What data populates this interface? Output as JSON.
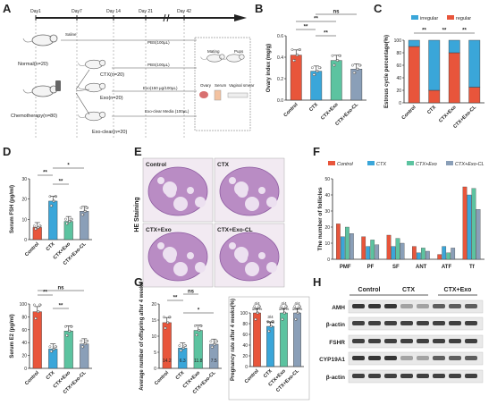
{
  "panel_labels": [
    "A",
    "B",
    "C",
    "D",
    "E",
    "F",
    "G",
    "H"
  ],
  "colors": {
    "control": "#e8553b",
    "ctx": "#3aa6d9",
    "ctx_exo": "#5cc3a0",
    "ctx_exo_cl": "#8a9fb8",
    "irregular": "#3aa6d9",
    "regular": "#e8553b"
  },
  "panel_a": {
    "timeline_labels": [
      "Day1",
      "Day7",
      "Day 14",
      "Day 21",
      "Day 42"
    ],
    "groups": [
      "Normal(n=20)",
      "Chemotherapy(n=80)"
    ],
    "branches": [
      "CTX(n=20)",
      "Exo(n=20)",
      "Exo-clear(n=20)"
    ],
    "treatments": [
      "Saline",
      "PBS(100µL)",
      "PBS(100µL)",
      "Exo(150 µg/100µL)",
      "Exo-clear Media (100µL)"
    ],
    "outcomes": [
      "Mating",
      "Pups",
      "Ovary",
      "Serum",
      "Vaginal smear"
    ]
  },
  "panel_b": {
    "ylabel": "Ovary index (mg/g)",
    "ticks": [
      "0.0",
      "0.2",
      "0.4",
      "0.6"
    ],
    "ns": "ns",
    "stars": [
      "**",
      "**",
      "**"
    ],
    "chart_data": {
      "type": "bar",
      "categories": [
        "Control",
        "CTX",
        "CTX+Exo",
        "CTX+Exo-CL"
      ],
      "values": [
        0.42,
        0.27,
        0.37,
        0.29
      ],
      "ylim": [
        0,
        0.6
      ]
    }
  },
  "panel_c": {
    "ylabel": "Estrous cycle percentage(%)",
    "ticks": [
      "0",
      "20",
      "40",
      "60",
      "80",
      "100"
    ],
    "legend": [
      "irregular",
      "regular"
    ],
    "stars": [
      "**",
      "**",
      "**"
    ],
    "chart_data": {
      "type": "bar",
      "categories": [
        "Control",
        "CTX",
        "CTX+Exo",
        "CTX+Exo-CL"
      ],
      "series": [
        {
          "name": "regular",
          "values": [
            90,
            20,
            80,
            25
          ]
        },
        {
          "name": "irregular",
          "values": [
            10,
            80,
            20,
            75
          ]
        }
      ],
      "ylim": [
        0,
        100
      ]
    }
  },
  "panel_d": {
    "ylabel": "Serum FSH (pg/ml)",
    "ticks": [
      "0",
      "10",
      "20",
      "30"
    ],
    "stars": [
      "**",
      "**",
      "*"
    ],
    "chart_data": {
      "type": "bar",
      "categories": [
        "Control",
        "CTX",
        "CTX+Exo",
        "CTX+Exo-CL"
      ],
      "values": [
        6,
        19,
        9,
        14
      ],
      "ylim": [
        0,
        30
      ]
    }
  },
  "panel_d2": {
    "ylabel": "Serum E2 (pg/ml)",
    "ticks": [
      "0",
      "20",
      "40",
      "60",
      "80",
      "100"
    ],
    "stars": [
      "**",
      "**"
    ],
    "ns": "ns",
    "chart_data": {
      "type": "bar",
      "categories": [
        "Control",
        "CTX",
        "CTX+Exo",
        "CTX+Exo-CL"
      ],
      "values": [
        88,
        30,
        58,
        38
      ],
      "ylim": [
        0,
        100
      ]
    }
  },
  "panel_e": {
    "side_label": "HE Staining",
    "tiles": [
      "Control",
      "CTX",
      "CTX+Exo",
      "CTX+Exo-CL"
    ]
  },
  "panel_f": {
    "legend": [
      "Control",
      "CTX",
      "CTX+Exo",
      "CTX+Exo-CL"
    ],
    "ylabel": "The number of follicles",
    "ticks": [
      "0",
      "10",
      "20",
      "30",
      "40",
      "50"
    ],
    "chart_data": {
      "type": "bar",
      "categories": [
        "PMF",
        "PF",
        "SF",
        "ANT",
        "ATF",
        "Tf"
      ],
      "series": [
        {
          "name": "Control",
          "values": [
            22,
            14,
            15,
            8,
            3,
            45
          ]
        },
        {
          "name": "CTX",
          "values": [
            14,
            8,
            8,
            4,
            8,
            40
          ]
        },
        {
          "name": "CTX+Exo",
          "values": [
            20,
            12,
            13,
            7,
            4,
            44
          ]
        },
        {
          "name": "CTX+Exo-CL",
          "values": [
            16,
            9,
            10,
            5,
            7,
            31
          ]
        }
      ],
      "ylim": [
        0,
        50
      ]
    }
  },
  "panel_g": {
    "ylabel": "Average number of offspring after 4 weeks",
    "ticks": [
      "0",
      "5",
      "10",
      "15",
      "20"
    ],
    "ns": "ns",
    "stars": [
      "**",
      "*"
    ],
    "chart_data": {
      "type": "bar",
      "categories": [
        "Control",
        "CTX",
        "CTX+Exo",
        "CTX+Exo-CL"
      ],
      "values": [
        14.2,
        6.3,
        11.8,
        7.5
      ],
      "ylim": [
        0,
        20
      ]
    },
    "bar_values": [
      "14.2",
      "6.3",
      "11.8",
      "7.5"
    ]
  },
  "panel_g2": {
    "ylabel": "Pregnancy rate after 4 weeks(%)",
    "ticks": [
      "0",
      "20",
      "40",
      "60",
      "80",
      "100"
    ],
    "fractions": [
      "4/4",
      "3/4",
      "4/4",
      "4/4"
    ],
    "percents": [
      "100%",
      "75%",
      "100%",
      "100%"
    ],
    "chart_data": {
      "type": "bar",
      "categories": [
        "Control",
        "CTX",
        "CTX+Exo",
        "CTX+Exo-CL"
      ],
      "values": [
        100,
        75,
        100,
        100
      ],
      "ylim": [
        0,
        100
      ]
    }
  },
  "panel_h": {
    "columns": [
      "Control",
      "CTX",
      "CTX+Exo"
    ],
    "rows": [
      "AMH",
      "β-actin",
      "FSHR",
      "CYP19A1",
      "β-actin"
    ]
  }
}
